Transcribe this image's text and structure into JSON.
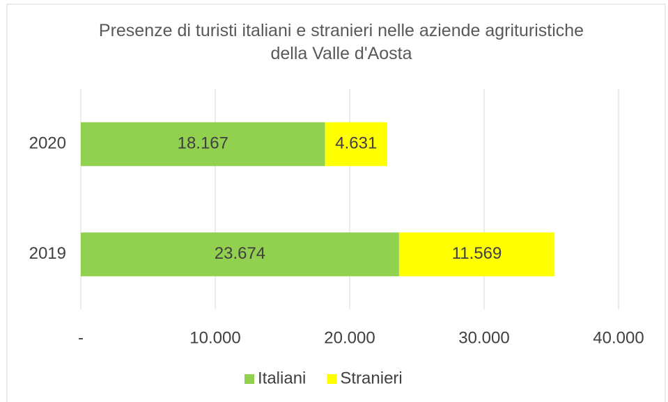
{
  "chart_data": {
    "type": "bar",
    "orientation": "horizontal",
    "stacked": true,
    "title": "Presenze di turisti italiani e stranieri nelle aziende agrituristiche della Valle d'Aosta",
    "categories": [
      "2020",
      "2019"
    ],
    "series": [
      {
        "name": "Italiani",
        "color": "#92d050",
        "values": [
          18167,
          23674
        ],
        "value_labels": [
          "18.167",
          "23.674"
        ]
      },
      {
        "name": "Stranieri",
        "color": "#ffff00",
        "values": [
          4631,
          11569
        ],
        "value_labels": [
          "4.631",
          "11.569"
        ]
      }
    ],
    "xlim": [
      0,
      40000
    ],
    "xticks": [
      {
        "value": 0,
        "label": "-"
      },
      {
        "value": 10000,
        "label": "10.000"
      },
      {
        "value": 20000,
        "label": "20.000"
      },
      {
        "value": 30000,
        "label": "30.000"
      },
      {
        "value": 40000,
        "label": "40.000"
      }
    ],
    "grid": true,
    "legend": "bottom"
  }
}
